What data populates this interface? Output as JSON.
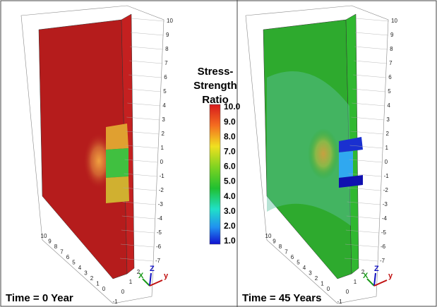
{
  "colorbar": {
    "title": "Stress-Strength Ratio",
    "labels": [
      "10.0",
      "9.0",
      "8.0",
      "7.0",
      "6.0",
      "5.0",
      "4.0",
      "3.0",
      "2.0",
      "1.0"
    ]
  },
  "panels": [
    {
      "caption": "Time = 0 Year",
      "z_ticks": [
        "10",
        "9",
        "8",
        "7",
        "6",
        "5",
        "4",
        "3",
        "2",
        "1",
        "0",
        "-1",
        "-2",
        "-3",
        "-4",
        "-5",
        "-6",
        "-7"
      ],
      "base_ticks": [
        "10",
        "9",
        "8",
        "7",
        "6",
        "5",
        "4",
        "3",
        "2",
        "1",
        "0"
      ],
      "front_ticks": [
        "-1",
        "0",
        "1",
        "2"
      ],
      "axis_labels": [
        "X",
        "Z",
        "y"
      ]
    },
    {
      "caption": "Time = 45 Years",
      "z_ticks": [
        "10",
        "9",
        "8",
        "7",
        "6",
        "5",
        "4",
        "3",
        "2",
        "1",
        "0",
        "-1",
        "-2",
        "-3",
        "-4",
        "-5",
        "-6",
        "-7"
      ],
      "base_ticks": [
        "10",
        "9",
        "8",
        "7",
        "6",
        "5",
        "4",
        "3",
        "2",
        "1",
        "0"
      ],
      "front_ticks": [
        "-1",
        "0",
        "1",
        "2"
      ],
      "axis_labels": [
        "X",
        "Z",
        "y"
      ]
    }
  ]
}
